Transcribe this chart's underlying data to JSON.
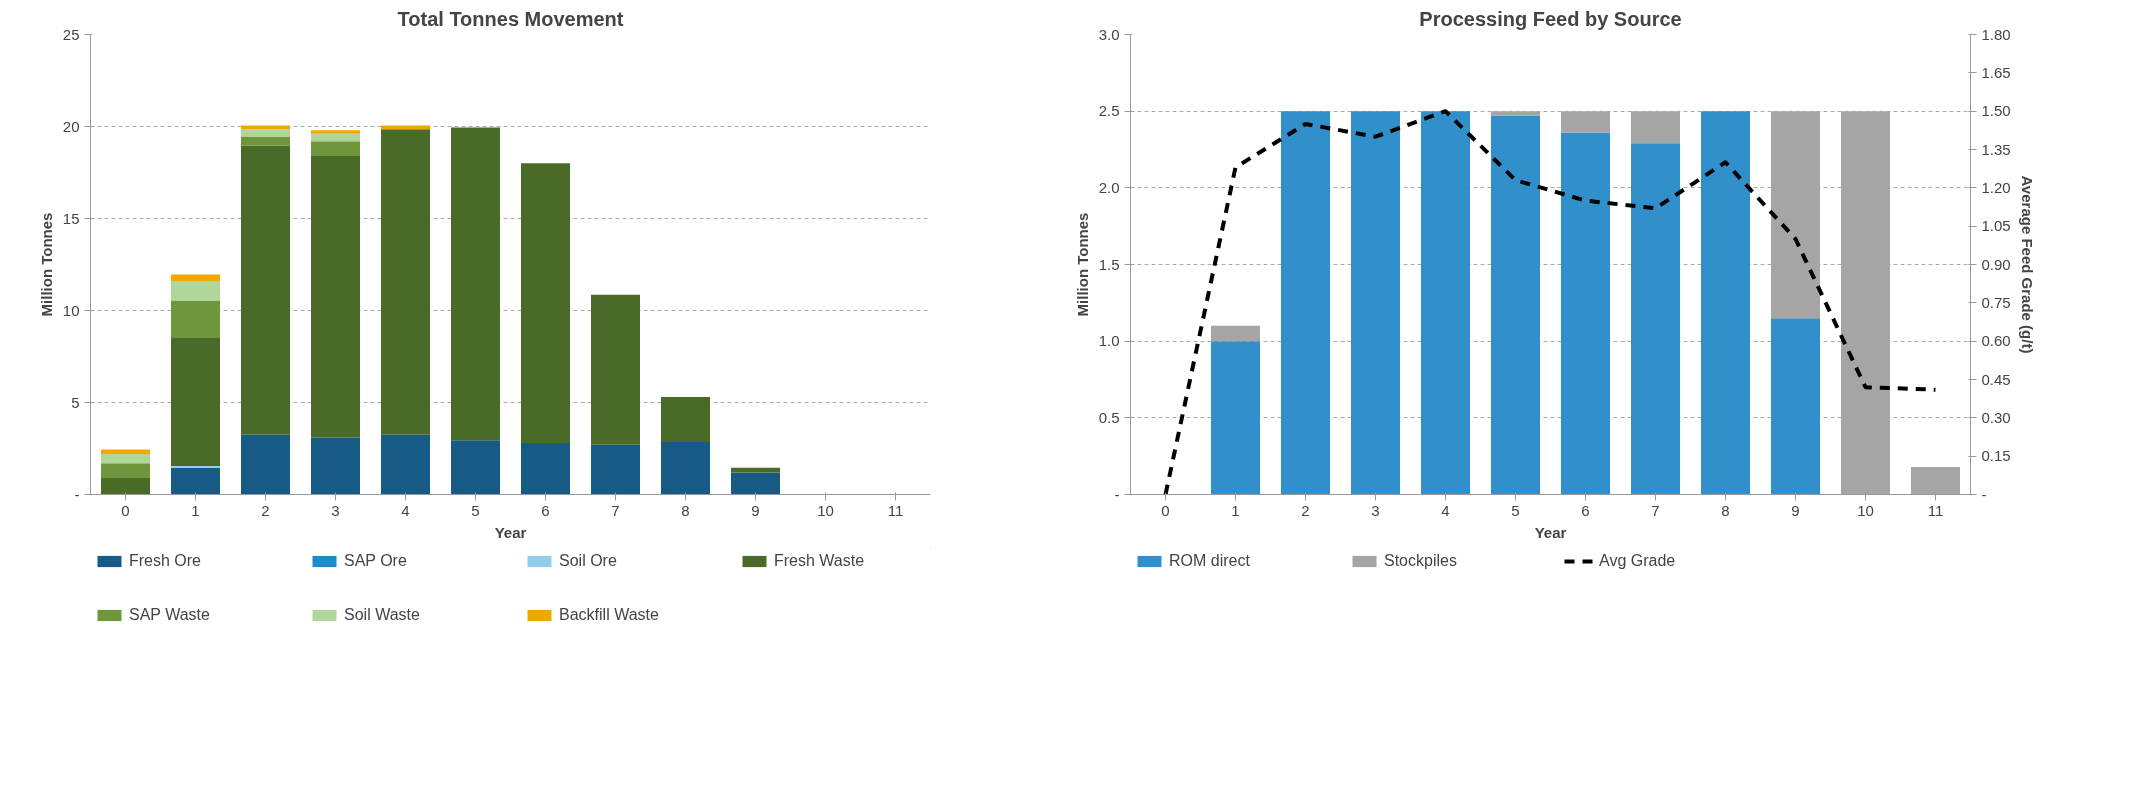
{
  "chart_data": [
    {
      "type": "bar",
      "title": "Total Tonnes Movement",
      "xlabel": "Year",
      "ylabel": "Million Tonnes",
      "stacked": true,
      "grid": "y",
      "legend": "bottom",
      "categories": [
        "0",
        "1",
        "2",
        "3",
        "4",
        "5",
        "6",
        "7",
        "8",
        "9",
        "10",
        "11"
      ],
      "ylim": [
        0,
        25
      ],
      "yticks": [
        {
          "value": 0,
          "label": "-"
        },
        5,
        10,
        15,
        20,
        25
      ],
      "series": [
        {
          "name": "Fresh Ore",
          "color": "#175a85",
          "values": [
            0,
            1.45,
            3.25,
            3.1,
            3.25,
            2.95,
            2.8,
            2.7,
            2.85,
            1.2,
            0,
            0
          ]
        },
        {
          "name": "SAP Ore",
          "color": "#1f8ac8",
          "values": [
            0,
            0,
            0,
            0,
            0,
            0,
            0,
            0,
            0,
            0,
            0,
            0
          ]
        },
        {
          "name": "Soil Ore",
          "color": "#8fcdea",
          "values": [
            0,
            0.1,
            0,
            0,
            0,
            0,
            0,
            0,
            0,
            0,
            0,
            0
          ]
        },
        {
          "name": "Fresh Waste",
          "color": "#4a6b27",
          "values": [
            0.9,
            6.95,
            15.7,
            15.3,
            16.6,
            17.0,
            15.2,
            8.15,
            2.45,
            0.25,
            0,
            0
          ]
        },
        {
          "name": "SAP Waste",
          "color": "#6f963c",
          "values": [
            0.8,
            2.05,
            0.5,
            0.8,
            0,
            0,
            0,
            0,
            0,
            0,
            0,
            0
          ]
        },
        {
          "name": "Soil Waste",
          "color": "#b1d69a",
          "values": [
            0.5,
            1.05,
            0.4,
            0.4,
            0,
            0,
            0,
            0,
            0,
            0,
            0,
            0
          ]
        },
        {
          "name": "Backfill Waste",
          "color": "#f0a800",
          "values": [
            0.25,
            0.35,
            0.2,
            0.2,
            0.2,
            0,
            0,
            0,
            0,
            0,
            0,
            0
          ]
        }
      ]
    },
    {
      "type": "bar",
      "title": "Processing Feed by Source",
      "xlabel": "Year",
      "ylabel": "Million Tonnes",
      "y2label": "Average Feed Grade (g/t)",
      "stacked": true,
      "grid": "y",
      "legend": "bottom",
      "line_style": "dashed",
      "categories": [
        "0",
        "1",
        "2",
        "3",
        "4",
        "5",
        "6",
        "7",
        "8",
        "9",
        "10",
        "11"
      ],
      "ylim": [
        0,
        3
      ],
      "yticks": [
        {
          "value": 0,
          "label": "-"
        },
        0.5,
        {
          "value": 1,
          "label": "1.0"
        },
        1.5,
        {
          "value": 2,
          "label": "2.0"
        },
        2.5,
        {
          "value": 3,
          "label": "3.0"
        }
      ],
      "y2lim": [
        0,
        1.8
      ],
      "y2ticks": [
        {
          "value": 0,
          "label": "-"
        },
        0.15,
        {
          "value": 0.3,
          "label": "0.30"
        },
        0.45,
        {
          "value": 0.6,
          "label": "0.60"
        },
        0.75,
        {
          "value": 0.9,
          "label": "0.90"
        },
        1.05,
        {
          "value": 1.2,
          "label": "1.20"
        },
        1.35,
        {
          "value": 1.5,
          "label": "1.50"
        },
        1.65,
        {
          "value": 1.8,
          "label": "1.80"
        }
      ],
      "series": [
        {
          "name": "ROM direct",
          "color": "#318fcc",
          "values": [
            0,
            1.0,
            2.5,
            2.5,
            2.5,
            2.47,
            2.36,
            2.29,
            2.5,
            1.15,
            0,
            0
          ]
        },
        {
          "name": "Stockpiles",
          "color": "#a5a5a5",
          "values": [
            0,
            0.1,
            0,
            0,
            0,
            0.03,
            0.14,
            0.21,
            0,
            1.35,
            2.5,
            0.18
          ]
        },
        {
          "name": "Avg Grade",
          "type": "line",
          "axis": "y2",
          "color": "#000000",
          "values": [
            0,
            1.28,
            1.45,
            1.4,
            1.5,
            1.23,
            1.15,
            1.12,
            1.3,
            1.0,
            0.42,
            0.41
          ]
        }
      ]
    }
  ]
}
